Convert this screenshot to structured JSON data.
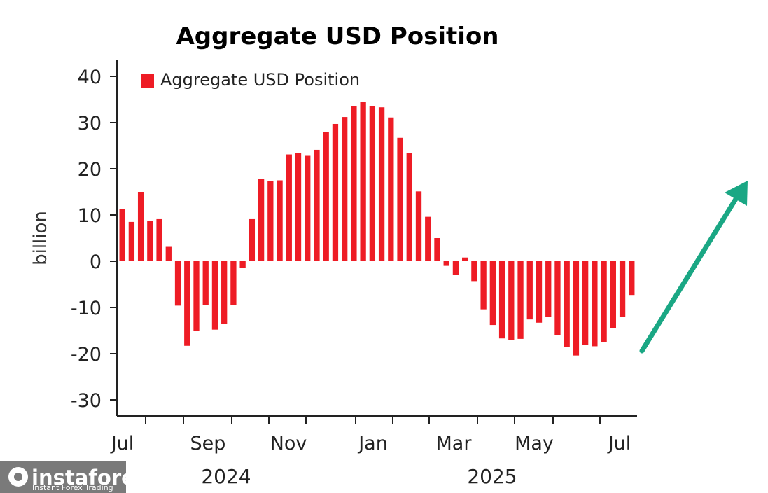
{
  "chart_data": {
    "type": "bar",
    "title": "Aggregate USD Position",
    "ylabel": "billion",
    "ylim": [
      -33,
      43
    ],
    "yticks": [
      40,
      30,
      20,
      10,
      0,
      -10,
      -20,
      -30
    ],
    "xtick_labels": [
      "Jul",
      "Sep",
      "Nov",
      "Jan",
      "Mar",
      "May",
      "Jul"
    ],
    "year_labels": [
      "2024",
      "2025"
    ],
    "grid": false,
    "legend_position": "top-left",
    "series": [
      {
        "name": "Aggregate USD Position",
        "color": "#ee1c25",
        "values": [
          11.3,
          8.5,
          15.0,
          8.7,
          9.1,
          3.1,
          -9.6,
          -18.3,
          -15.0,
          -9.4,
          -14.8,
          -13.5,
          -9.4,
          -1.5,
          9.1,
          17.8,
          17.3,
          17.5,
          23.1,
          23.4,
          22.8,
          24.1,
          27.9,
          29.7,
          31.2,
          33.5,
          34.4,
          33.6,
          33.3,
          31.1,
          26.7,
          23.4,
          15.1,
          9.6,
          5.0,
          -1.0,
          -2.9,
          0.8,
          -4.3,
          -10.4,
          -13.8,
          -16.7,
          -17.1,
          -16.8,
          -12.6,
          -13.3,
          -12.1,
          -16.0,
          -18.6,
          -20.4,
          -18.1,
          -18.4,
          -17.5,
          -14.4,
          -12.1,
          -7.3
        ]
      }
    ],
    "arrow_color": "#1aa784"
  },
  "watermark": {
    "brand": "instaforex",
    "tagline": "Instant Forex Trading"
  }
}
